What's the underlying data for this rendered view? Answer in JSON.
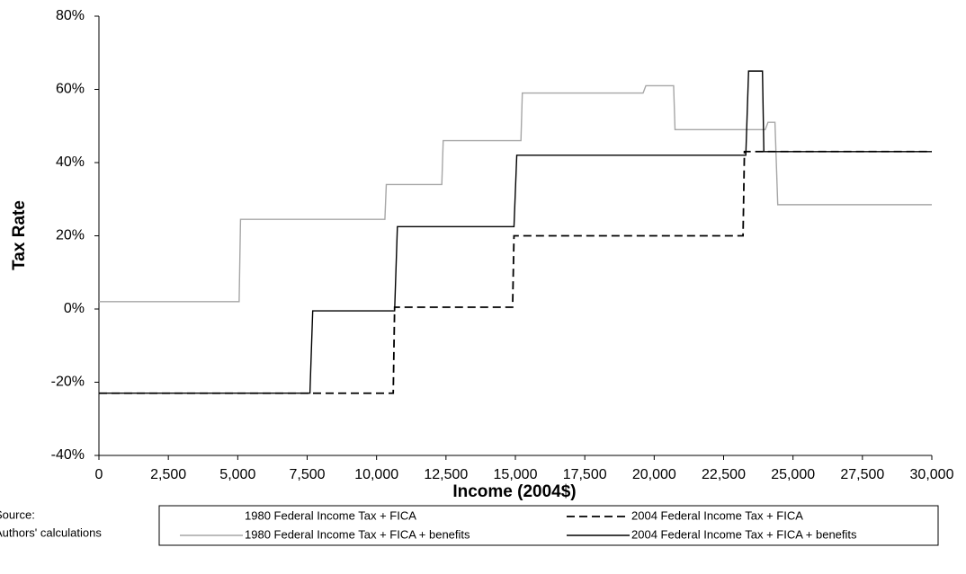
{
  "chart_data": {
    "type": "line",
    "ylabel": "Tax Rate",
    "xlabel": "Income (2004$)",
    "notes": [
      "Source:",
      "Authors' calculations"
    ],
    "xlim": [
      0,
      30000
    ],
    "xticks": [
      0,
      {
        "value": 2500,
        "label": "2,500"
      },
      {
        "value": 5000,
        "label": "5,000"
      },
      {
        "value": 7500,
        "label": "7,500"
      },
      {
        "value": 10000,
        "label": "10,000"
      },
      {
        "value": 12500,
        "label": "12,500"
      },
      {
        "value": 15000,
        "label": "15,000"
      },
      {
        "value": 17500,
        "label": "17,500"
      },
      {
        "value": 20000,
        "label": "20,000"
      },
      {
        "value": 22500,
        "label": "22,500"
      },
      {
        "value": 25000,
        "label": "25,000"
      },
      {
        "value": 27500,
        "label": "27,500"
      },
      {
        "value": 30000,
        "label": "30,000"
      }
    ],
    "ylim": [
      -40,
      80
    ],
    "yticks": [
      {
        "value": -40,
        "label": "-40%"
      },
      {
        "value": -20,
        "label": "-20%"
      },
      {
        "value": 0,
        "label": "0%"
      },
      {
        "value": 20,
        "label": "20%"
      },
      {
        "value": 40,
        "label": "40%"
      },
      {
        "value": 60,
        "label": "60%"
      },
      {
        "value": 80,
        "label": "80%"
      }
    ],
    "series": [
      {
        "name": "1980 Federal Income Tax + FICA",
        "color": "#ffffff",
        "dash": false,
        "x": [
          0,
          30000
        ],
        "values": [
          null,
          null
        ]
      },
      {
        "name": "2004 Federal Income Tax + FICA",
        "color": "#000000",
        "dash": true,
        "x": [
          0,
          10600,
          10650,
          14900,
          14950,
          23200,
          23250,
          30000
        ],
        "values": [
          -23,
          -23,
          0.5,
          0.5,
          20,
          20,
          43,
          43
        ]
      },
      {
        "name": "1980 Federal Income Tax + FICA + benefits",
        "color": "#a6a6a6",
        "dash": false,
        "x": [
          0,
          5050,
          5100,
          10300,
          10350,
          12350,
          12400,
          15200,
          15250,
          19600,
          19700,
          20700,
          20750,
          23700,
          23800,
          24000,
          24100,
          24350,
          24450,
          30000
        ],
        "values": [
          2,
          2,
          24.5,
          24.5,
          34,
          34,
          46,
          46,
          59,
          59,
          61,
          61,
          49,
          49,
          49,
          49,
          51,
          51,
          28.5,
          28.5
        ]
      },
      {
        "name": "2004 Federal Income Tax + FICA + benefits",
        "color": "#000000",
        "dash": false,
        "x": [
          0,
          7600,
          7700,
          10650,
          10750,
          14950,
          15050,
          23300,
          23400,
          23900,
          23950,
          30000
        ],
        "values": [
          -23,
          -23,
          -0.5,
          -0.5,
          22.5,
          22.5,
          42,
          42,
          65,
          65,
          43,
          43
        ]
      }
    ]
  }
}
